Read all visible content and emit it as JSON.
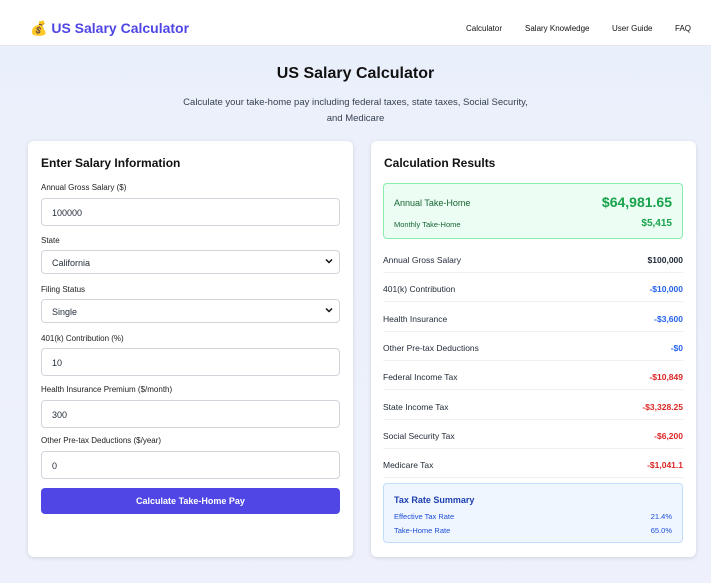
{
  "header": {
    "logo_icon": "💰",
    "logo": "US Salary Calculator",
    "nav": [
      "Calculator",
      "Salary Knowledge",
      "User Guide",
      "FAQ"
    ]
  },
  "hero": {
    "title": "US Salary Calculator",
    "subtitle_line1": "Calculate your take-home pay including federal taxes, state taxes, Social Security,",
    "subtitle_line2": "and Medicare"
  },
  "form": {
    "title": "Enter Salary Information",
    "fields": [
      {
        "label": "Annual Gross Salary ($)",
        "value": "100000"
      },
      {
        "label": "State",
        "value": "California"
      },
      {
        "label": "Filing Status",
        "value": "Single"
      },
      {
        "label": "401(k) Contribution (%)",
        "value": "10"
      },
      {
        "label": "Health Insurance Premium ($/month)",
        "value": "300"
      },
      {
        "label": "Other Pre-tax Deductions ($/year)",
        "value": "0"
      }
    ],
    "button": "Calculate Take-Home Pay"
  },
  "results": {
    "title": "Calculation Results",
    "annual_label": "Annual Take-Home",
    "annual_value": "$64,981.65",
    "monthly_label": "Monthly Take-Home",
    "monthly_value": "$5,415",
    "rows": [
      [
        "Annual Gross Salary",
        "$100,000"
      ],
      [
        "401(k) Contribution",
        "-$10,000"
      ],
      [
        "Health Insurance",
        "-$3,600"
      ],
      [
        "Other Pre-tax Deductions",
        "-$0"
      ],
      [
        "Federal Income Tax",
        "-$10,849"
      ],
      [
        "State Income Tax",
        "-$3,328.25"
      ],
      [
        "Social Security Tax",
        "-$6,200"
      ],
      [
        "Medicare Tax",
        "-$1,041.1"
      ]
    ],
    "summary": {
      "title": "Tax Rate Summary",
      "rows": [
        [
          "Effective Tax Rate",
          "21.4%"
        ],
        [
          "Take-Home Rate",
          "65.0%"
        ]
      ]
    }
  }
}
